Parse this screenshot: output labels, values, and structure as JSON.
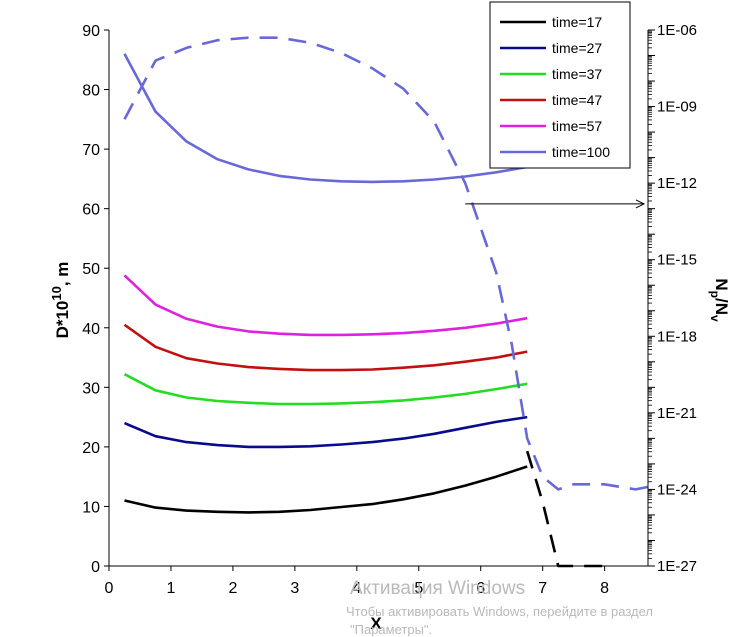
{
  "chart_data": {
    "type": "line",
    "xlabel": "X",
    "ylabel": "D*10^10, m",
    "ylabel_base": "D*10",
    "ylabel_exp": "10",
    "ylabel_tail": ", m",
    "y2label": "Np/Nv",
    "y2label_main1": "N",
    "y2label_sub1": "p",
    "y2label_main2": "/N",
    "y2label_sub2": "v",
    "xlim": [
      0,
      8.7
    ],
    "ylim": [
      0,
      90
    ],
    "xticks": [
      "0",
      "1",
      "2",
      "3",
      "4",
      "5",
      "6",
      "7",
      "8"
    ],
    "yticks": [
      "0",
      "10",
      "20",
      "30",
      "40",
      "50",
      "60",
      "70",
      "80",
      "90"
    ],
    "y2scale": "log",
    "y2lim_exp": [
      -27,
      -6
    ],
    "y2ticks": [
      "1E-27",
      "1E-24",
      "1E-21",
      "1E-18",
      "1E-15",
      "1E-12",
      "1E-09",
      "1E-06"
    ],
    "legend_position": "top-right",
    "series": [
      {
        "name": "time=17",
        "color": "#000000",
        "x": [
          0.25,
          0.75,
          1.25,
          1.75,
          2.25,
          2.75,
          3.25,
          3.75,
          4.25,
          4.75,
          5.25,
          5.75,
          6.25,
          6.75
        ],
        "y": [
          11,
          9.8,
          9.3,
          9.1,
          9.0,
          9.1,
          9.4,
          9.9,
          10.4,
          11.2,
          12.2,
          13.5,
          15.0,
          16.7
        ]
      },
      {
        "name": "time=27",
        "color": "#0a0a8c",
        "x": [
          0.25,
          0.75,
          1.25,
          1.75,
          2.25,
          2.75,
          3.25,
          3.75,
          4.25,
          4.75,
          5.25,
          5.75,
          6.25,
          6.75
        ],
        "y": [
          24,
          21.8,
          20.8,
          20.3,
          20.0,
          20.0,
          20.1,
          20.4,
          20.8,
          21.4,
          22.2,
          23.2,
          24.2,
          25.0
        ]
      },
      {
        "name": "time=37",
        "color": "#22dd22",
        "x": [
          0.25,
          0.75,
          1.25,
          1.75,
          2.25,
          2.75,
          3.25,
          3.75,
          4.25,
          4.75,
          5.25,
          5.75,
          6.25,
          6.75
        ],
        "y": [
          32.2,
          29.5,
          28.3,
          27.7,
          27.4,
          27.2,
          27.2,
          27.3,
          27.5,
          27.8,
          28.3,
          28.9,
          29.7,
          30.6
        ]
      },
      {
        "name": "time=47",
        "color": "#c01010",
        "x": [
          0.25,
          0.75,
          1.25,
          1.75,
          2.25,
          2.75,
          3.25,
          3.75,
          4.25,
          4.75,
          5.25,
          5.75,
          6.25,
          6.75
        ],
        "y": [
          40.5,
          36.8,
          34.9,
          34.0,
          33.4,
          33.1,
          32.9,
          32.9,
          33.0,
          33.3,
          33.7,
          34.3,
          35.0,
          36.0
        ]
      },
      {
        "name": "time=57",
        "color": "#e020e0",
        "x": [
          0.25,
          0.75,
          1.25,
          1.75,
          2.25,
          2.75,
          3.25,
          3.75,
          4.25,
          4.75,
          5.25,
          5.75,
          6.25,
          6.75
        ],
        "y": [
          48.8,
          43.9,
          41.5,
          40.2,
          39.4,
          39.0,
          38.8,
          38.8,
          38.9,
          39.1,
          39.5,
          40.0,
          40.7,
          41.6
        ]
      },
      {
        "name": "time=100",
        "color": "#6868d8",
        "x": [
          0.25,
          0.75,
          1.25,
          1.75,
          2.25,
          2.75,
          3.25,
          3.75,
          4.25,
          4.75,
          5.25,
          5.75,
          6.25,
          6.75
        ],
        "y": [
          86.0,
          76.3,
          71.3,
          68.3,
          66.6,
          65.5,
          64.9,
          64.6,
          64.5,
          64.6,
          64.9,
          65.4,
          66.1,
          67.0
        ]
      }
    ],
    "secondary_series": [
      {
        "color": "#000000",
        "style": "dashed",
        "axis": "right",
        "x": [
          6.75,
          7.0,
          7.25,
          7.5,
          7.75,
          8.0
        ],
        "y_log10": [
          -22.5,
          -24.5,
          -27.0,
          -27.0,
          -27.0,
          -27.0
        ]
      },
      {
        "color": "#6868d8",
        "style": "dashed",
        "axis": "right",
        "x": [
          0.25,
          0.75,
          1.25,
          1.75,
          2.25,
          2.75,
          3.25,
          3.75,
          4.25,
          4.75,
          5.25,
          5.75,
          6.25,
          6.5,
          6.75,
          7.0,
          7.25,
          7.5,
          7.75,
          8.0,
          8.25,
          8.5,
          8.7
        ],
        "y_log10": [
          -9.5,
          -7.2,
          -6.7,
          -6.4,
          -6.3,
          -6.3,
          -6.5,
          -6.9,
          -7.5,
          -8.3,
          -9.6,
          -12.0,
          -15.5,
          -18.3,
          -22.0,
          -23.5,
          -24.0,
          -23.8,
          -23.8,
          -23.8,
          -23.9,
          -24.0,
          -23.9
        ]
      }
    ],
    "annotations": [
      {
        "type": "arrow",
        "from": [
          5.75,
          60.8
        ],
        "to": [
          8.7,
          60.8
        ],
        "axis": "left"
      }
    ]
  },
  "watermark": {
    "title": "Активация Windows",
    "subtitle": "Чтобы активировать Windows, перейдите в раздел",
    "subtitle2": "\"Параметры\"."
  }
}
